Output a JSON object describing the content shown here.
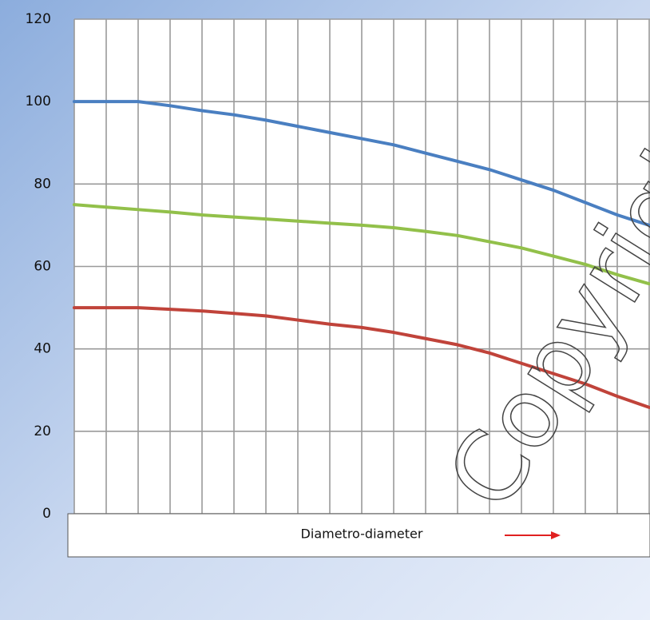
{
  "chart_data": {
    "type": "line",
    "categories": [
      null,
      null,
      null,
      null,
      null,
      null,
      null,
      null,
      null,
      null,
      null,
      null,
      null,
      null,
      null,
      null,
      null,
      null,
      null
    ],
    "series": [
      {
        "color": "#4a7fc1",
        "values": [
          100,
          100,
          100,
          99,
          97.8,
          96.8,
          95.5,
          94,
          92.5,
          91,
          89.5,
          87.5,
          85.5,
          83.5,
          81,
          78.5,
          75.5,
          72.5,
          70
        ]
      },
      {
        "color": "#92c04a",
        "values": [
          75,
          74.4,
          73.8,
          73.2,
          72.5,
          72,
          71.5,
          71,
          70.5,
          70,
          69.4,
          68.5,
          67.5,
          66,
          64.5,
          62.5,
          60.5,
          58,
          55.8
        ]
      },
      {
        "color": "#c0433a",
        "values": [
          50,
          50,
          50,
          49.6,
          49.2,
          48.6,
          48,
          47,
          46,
          45.2,
          44,
          42.5,
          41,
          39,
          36.5,
          34,
          31.5,
          28.5,
          25.8
        ]
      }
    ],
    "xlabel": "Diametro-diameter",
    "watermark": "Copyright",
    "ylim": [
      0,
      120
    ],
    "yticks": [
      0,
      20,
      40,
      60,
      80,
      100,
      120
    ],
    "grid": true
  }
}
